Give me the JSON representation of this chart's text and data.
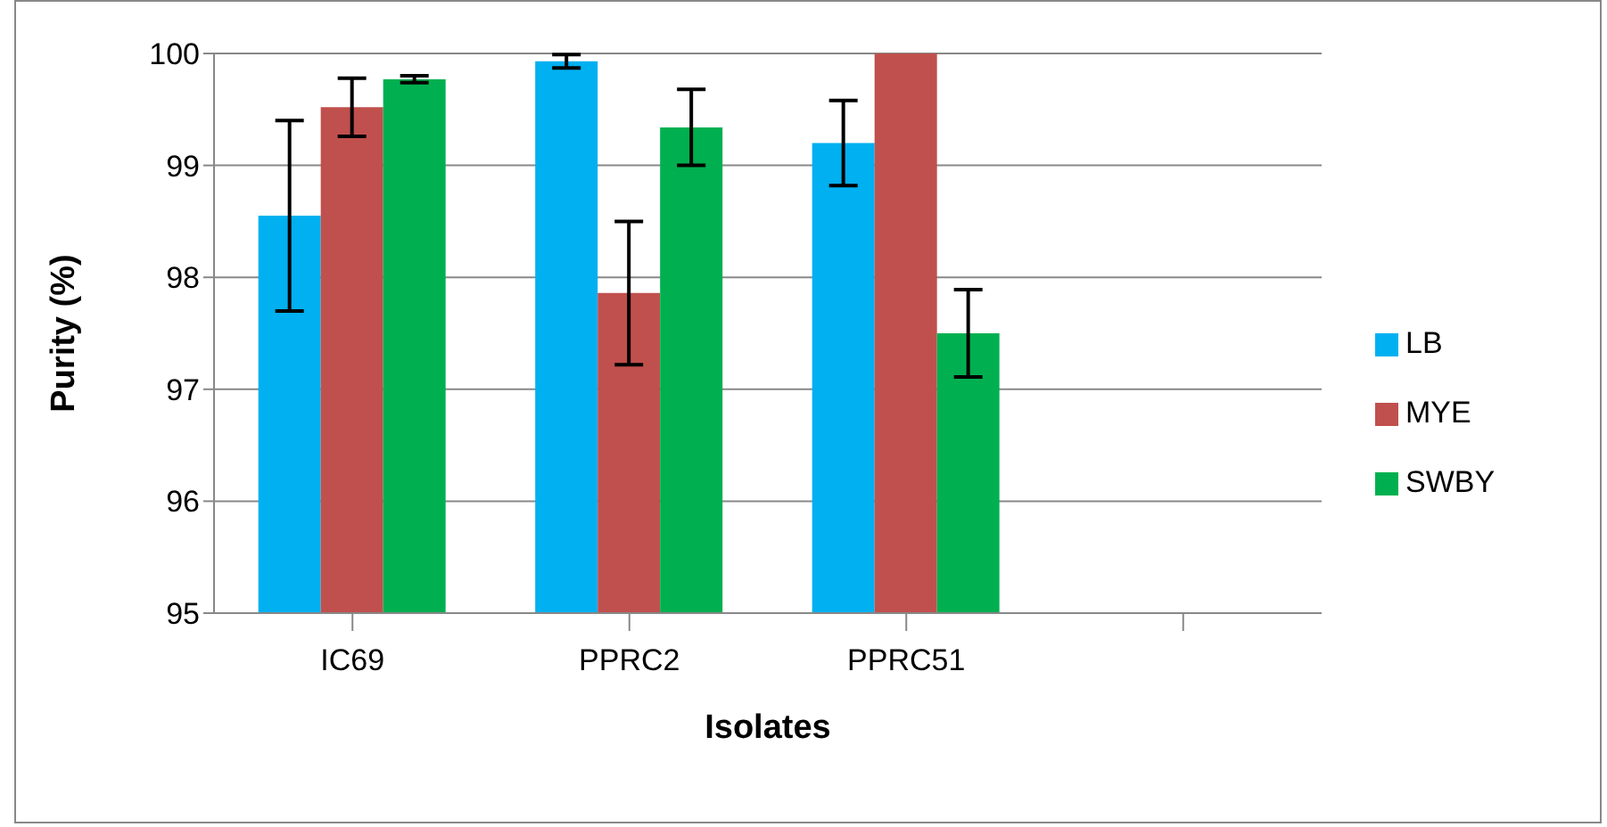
{
  "chart_data": {
    "type": "bar",
    "xlabel": "Isolates",
    "ylabel": "Purity  (%)",
    "categories": [
      "IC69",
      "PPRC2",
      "PPRC51",
      null
    ],
    "series": [
      {
        "name": "LB",
        "color": "#00b0f0",
        "values": [
          98.55,
          99.93,
          99.2,
          null
        ],
        "errors": [
          0.85,
          0.06,
          0.38,
          null
        ]
      },
      {
        "name": "MYE",
        "color": "#c0504d",
        "values": [
          99.52,
          97.86,
          100,
          null
        ],
        "errors": [
          0.26,
          0.64,
          null,
          null
        ]
      },
      {
        "name": "SWBY",
        "color": "#00b050",
        "values": [
          99.77,
          99.34,
          97.5,
          null
        ],
        "errors": [
          0.03,
          0.34,
          0.39,
          null
        ]
      }
    ],
    "ylim": [
      95,
      100
    ],
    "yticks": [
      95,
      96,
      97,
      98,
      99,
      100
    ],
    "grid": "y",
    "legend": "right"
  }
}
